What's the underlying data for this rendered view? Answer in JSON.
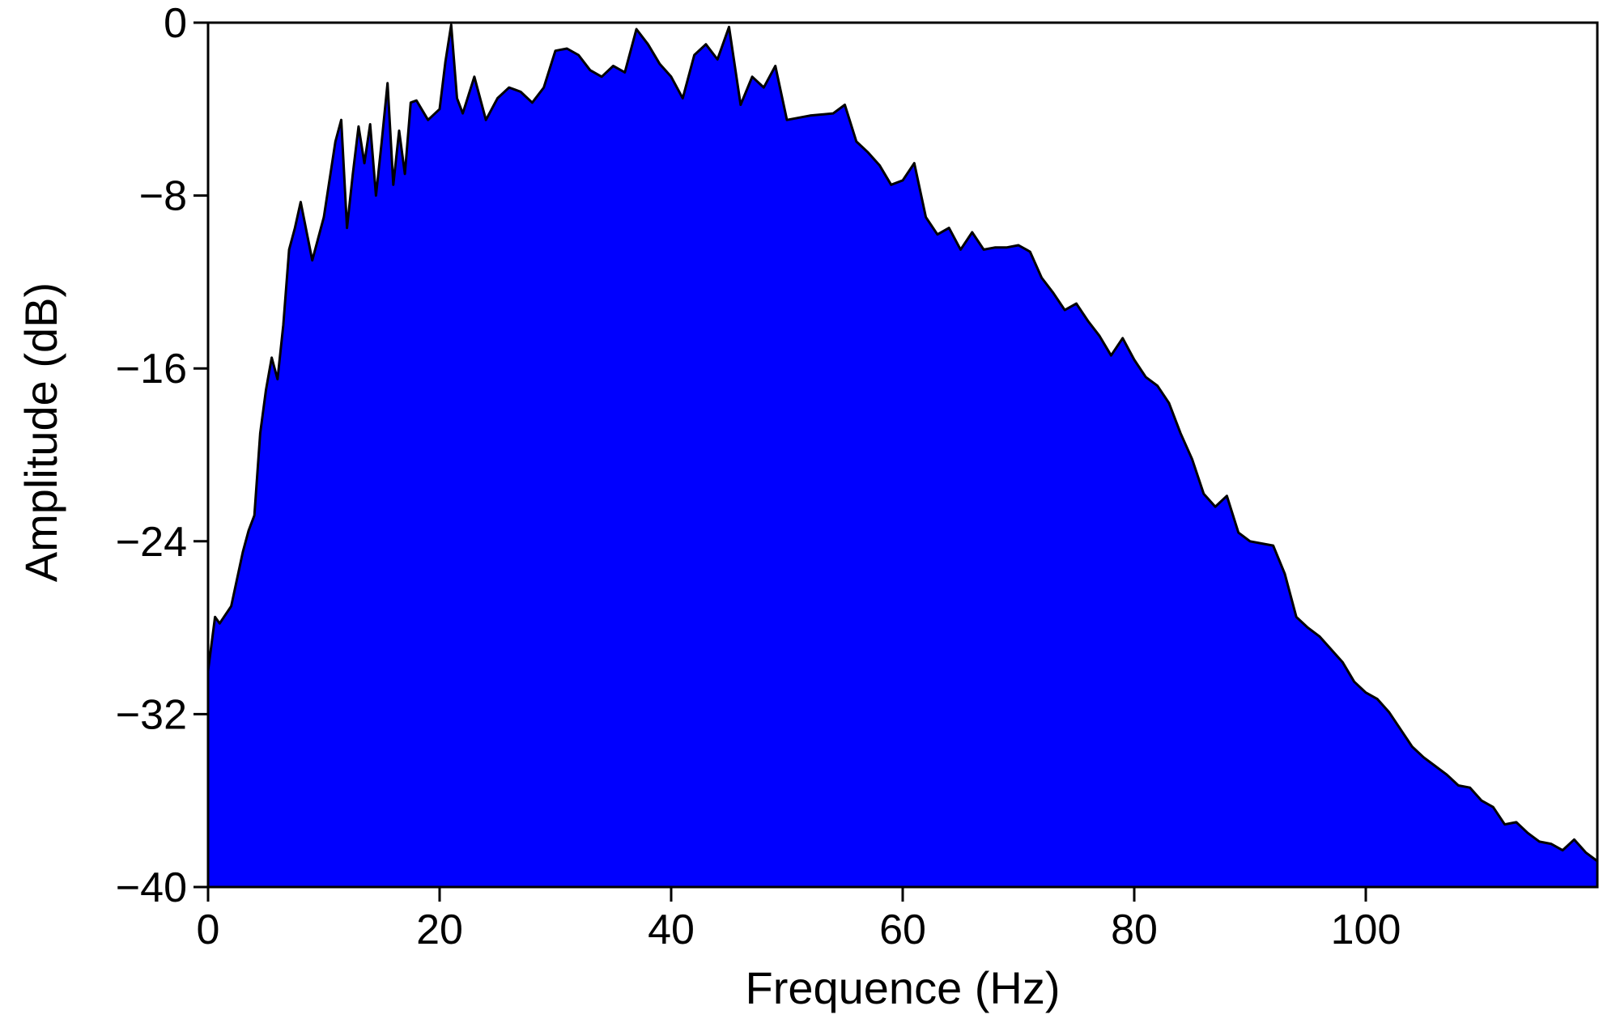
{
  "colors": {
    "fill": "#0000ff",
    "line": "#000000",
    "frame": "#000000",
    "background": "#ffffff"
  },
  "chart_data": {
    "type": "area",
    "title": "",
    "xlabel": "Frequence (Hz)",
    "ylabel": "Amplitude (dB)",
    "xlim": [
      0,
      120
    ],
    "ylim": [
      -40,
      0
    ],
    "xticks": [
      0,
      20,
      40,
      60,
      80,
      100
    ],
    "yticks": [
      0,
      -8,
      -16,
      -24,
      -32,
      -40
    ],
    "grid": false,
    "legend": "none",
    "x": [
      0,
      0.6,
      1,
      2,
      3,
      3.5,
      4,
      4.5,
      5,
      5.5,
      6,
      6.5,
      7,
      7.5,
      8,
      9,
      10,
      11,
      11.5,
      12,
      12.5,
      13,
      13.5,
      14,
      14.5,
      15,
      15.5,
      16,
      16.5,
      17,
      17.5,
      18,
      19,
      20,
      20.5,
      21,
      21.5,
      22,
      23,
      24,
      25,
      26,
      27,
      28,
      29,
      30,
      31,
      32,
      33,
      34,
      35,
      36,
      37,
      38,
      39,
      40,
      41,
      42,
      43,
      44,
      45,
      46,
      47,
      48,
      49,
      50,
      52,
      54,
      55,
      56,
      57,
      58,
      59,
      60,
      61,
      62,
      63,
      64,
      65,
      66,
      67,
      68,
      69,
      70,
      71,
      72,
      73,
      74,
      75,
      76,
      77,
      78,
      79,
      80,
      81,
      82,
      83,
      84,
      85,
      86,
      87,
      88,
      89,
      90,
      91,
      92,
      93,
      94,
      95,
      96,
      97,
      98,
      99,
      100,
      101,
      102,
      103,
      104,
      105,
      106,
      107,
      108,
      109,
      110,
      111,
      112,
      113,
      114,
      115,
      116,
      117,
      118,
      119,
      120
    ],
    "y": [
      -30.0,
      -27.5,
      -27.8,
      -27.0,
      -24.5,
      -23.5,
      -22.8,
      -19.0,
      -17.0,
      -15.5,
      -16.5,
      -14.0,
      -10.5,
      -9.5,
      -8.3,
      -11.0,
      -9.0,
      -5.5,
      -4.5,
      -9.5,
      -7.0,
      -4.8,
      -6.5,
      -4.7,
      -8.0,
      -5.5,
      -2.8,
      -7.5,
      -5.0,
      -7.0,
      -3.7,
      -3.6,
      -4.5,
      -4.0,
      -1.8,
      -0.1,
      -3.5,
      -4.2,
      -2.5,
      -4.5,
      -3.5,
      -3.0,
      -3.2,
      -3.7,
      -3.0,
      -1.3,
      -1.2,
      -1.5,
      -2.2,
      -2.5,
      -2.0,
      -2.3,
      -0.3,
      -1.0,
      -1.9,
      -2.5,
      -3.5,
      -1.5,
      -1.0,
      -1.7,
      -0.2,
      -3.8,
      -2.5,
      -3.0,
      -2.0,
      -4.5,
      -4.3,
      -4.2,
      -3.8,
      -5.5,
      -6.0,
      -6.6,
      -7.5,
      -7.3,
      -6.5,
      -9.0,
      -9.8,
      -9.5,
      -10.5,
      -9.7,
      -10.5,
      -10.4,
      -10.4,
      -10.3,
      -10.6,
      -11.8,
      -12.5,
      -13.3,
      -13.0,
      -13.8,
      -14.5,
      -15.4,
      -14.6,
      -15.6,
      -16.4,
      -16.8,
      -17.6,
      -19.0,
      -20.2,
      -21.8,
      -22.4,
      -21.9,
      -23.6,
      -24.0,
      -24.1,
      -24.2,
      -25.5,
      -27.5,
      -28.0,
      -28.4,
      -29.0,
      -29.6,
      -30.5,
      -31.0,
      -31.3,
      -31.9,
      -32.7,
      -33.5,
      -34.0,
      -34.4,
      -34.8,
      -35.3,
      -35.4,
      -36.0,
      -36.3,
      -37.1,
      -37.0,
      -37.5,
      -37.9,
      -38.0,
      -38.3,
      -37.8,
      -38.4,
      -38.8
    ]
  }
}
